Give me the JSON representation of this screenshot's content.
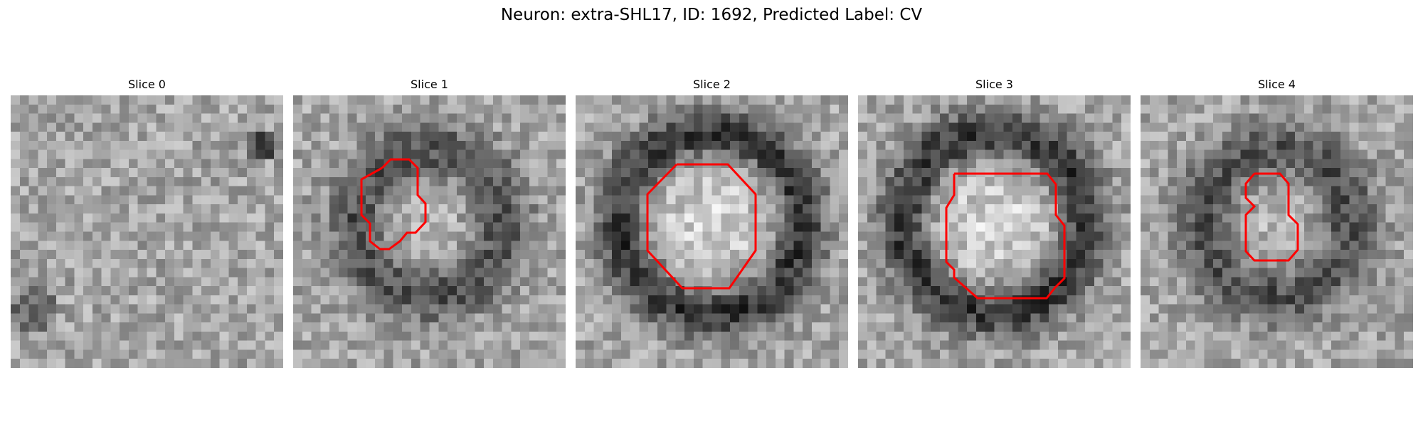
{
  "figure": {
    "title": "Neuron: extra-SHL17, ID: 1692, Predicted Label: CV"
  },
  "outline_color": "#ff0000",
  "panels": [
    {
      "title": "Slice 0",
      "ring": "faint",
      "has_contour": false
    },
    {
      "title": "Slice 1",
      "ring": "medium",
      "has_contour": true
    },
    {
      "title": "Slice 2",
      "ring": "strong",
      "has_contour": true
    },
    {
      "title": "Slice 3",
      "ring": "strong",
      "has_contour": true
    },
    {
      "title": "Slice 4",
      "ring": "medium",
      "has_contour": true
    }
  ]
}
